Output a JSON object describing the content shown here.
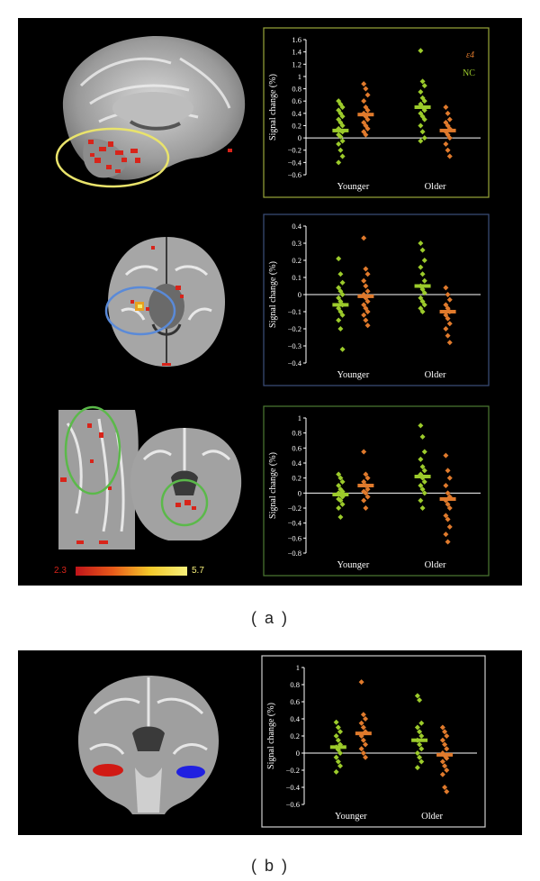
{
  "figure": {
    "caption_a": "( a )",
    "caption_b": "( b )",
    "colorbar": {
      "min_label": "2.3",
      "max_label": "5.7"
    }
  },
  "legend": {
    "e4": "ε4",
    "nc": "NC"
  },
  "colors": {
    "nc": "#9ccb2b",
    "e4": "#e07a2c",
    "box_a1": "#9aa63a",
    "box_a2": "#3c4f7c",
    "box_a3": "#4d7a33",
    "box_b": "#cfcfcf",
    "circle_yellow": "#e9e36b",
    "circle_blue": "#5a8ad8",
    "circle_green": "#5bb94a"
  },
  "chart_data": [
    {
      "type": "scatter",
      "ylabel": "Signal change (%)",
      "categories": [
        "Younger",
        "Older"
      ],
      "ylim": [
        -0.6,
        1.6
      ],
      "yticks": [
        -0.6,
        -0.4,
        -0.2,
        0,
        0.2,
        0.4,
        0.6,
        0.8,
        1,
        1.2,
        1.4,
        1.6
      ],
      "yticklabels": [
        "−0.6",
        "−0.4",
        "−0.2",
        "0",
        "0.2",
        "0.4",
        "0.6",
        "0.8",
        "1",
        "1.2",
        "1.4",
        "1.6"
      ],
      "legend_visible": true,
      "series": [
        {
          "name": "NC",
          "group": "Younger",
          "mean": 0.12,
          "values": [
            0.6,
            0.55,
            0.5,
            0.45,
            0.4,
            0.35,
            0.3,
            0.25,
            0.2,
            0.15,
            0.12,
            0.1,
            0.05,
            0.02,
            -0.05,
            -0.1,
            -0.2,
            -0.3,
            -0.4
          ]
        },
        {
          "name": "ε4",
          "group": "Younger",
          "mean": 0.38,
          "values": [
            0.88,
            0.8,
            0.7,
            0.6,
            0.5,
            0.45,
            0.4,
            0.35,
            0.3,
            0.25,
            0.2,
            0.15,
            0.1,
            0.05
          ]
        },
        {
          "name": "NC",
          "group": "Older",
          "mean": 0.5,
          "values": [
            1.42,
            0.92,
            0.85,
            0.75,
            0.65,
            0.6,
            0.55,
            0.5,
            0.45,
            0.4,
            0.35,
            0.3,
            0.2,
            0.1,
            0.0,
            -0.05
          ]
        },
        {
          "name": "ε4",
          "group": "Older",
          "mean": 0.12,
          "values": [
            0.5,
            0.4,
            0.3,
            0.25,
            0.2,
            0.15,
            0.1,
            0.05,
            0.0,
            -0.1,
            -0.2,
            -0.3
          ]
        }
      ]
    },
    {
      "type": "scatter",
      "ylabel": "Signal change (%)",
      "categories": [
        "Younger",
        "Older"
      ],
      "ylim": [
        -0.4,
        0.4
      ],
      "yticks": [
        -0.4,
        -0.3,
        -0.2,
        -0.1,
        0,
        0.1,
        0.2,
        0.3,
        0.4
      ],
      "yticklabels": [
        "−0.4",
        "−0.3",
        "−0.2",
        "−0.1",
        "0",
        "0.1",
        "0.2",
        "0.3",
        "0.4"
      ],
      "legend_visible": false,
      "series": [
        {
          "name": "NC",
          "group": "Younger",
          "mean": -0.06,
          "values": [
            0.21,
            0.12,
            0.07,
            0.04,
            0.02,
            0.0,
            -0.02,
            -0.04,
            -0.06,
            -0.08,
            -0.1,
            -0.12,
            -0.15,
            -0.2,
            -0.32
          ]
        },
        {
          "name": "ε4",
          "group": "Younger",
          "mean": -0.01,
          "values": [
            0.33,
            0.15,
            0.12,
            0.08,
            0.05,
            0.02,
            0.0,
            -0.02,
            -0.04,
            -0.06,
            -0.08,
            -0.1,
            -0.12,
            -0.15,
            -0.18
          ]
        },
        {
          "name": "NC",
          "group": "Older",
          "mean": 0.05,
          "values": [
            0.3,
            0.26,
            0.2,
            0.16,
            0.12,
            0.08,
            0.05,
            0.03,
            0.01,
            -0.02,
            -0.04,
            -0.06,
            -0.08,
            -0.1
          ]
        },
        {
          "name": "ε4",
          "group": "Older",
          "mean": -0.1,
          "values": [
            0.04,
            0.0,
            -0.03,
            -0.06,
            -0.08,
            -0.1,
            -0.12,
            -0.14,
            -0.17,
            -0.2,
            -0.24,
            -0.28
          ]
        }
      ]
    },
    {
      "type": "scatter",
      "ylabel": "Signal change (%)",
      "categories": [
        "Younger",
        "Older"
      ],
      "ylim": [
        -0.8,
        1
      ],
      "yticks": [
        -0.8,
        -0.6,
        -0.4,
        -0.2,
        0,
        0.2,
        0.4,
        0.6,
        0.8,
        1
      ],
      "yticklabels": [
        "−0.8",
        "−0.6",
        "−0.4",
        "−0.2",
        "0",
        "0.2",
        "0.4",
        "0.6",
        "0.8",
        "1"
      ],
      "legend_visible": false,
      "series": [
        {
          "name": "NC",
          "group": "Younger",
          "mean": -0.02,
          "values": [
            0.25,
            0.2,
            0.15,
            0.1,
            0.05,
            0.02,
            0.0,
            -0.02,
            -0.05,
            -0.08,
            -0.1,
            -0.15,
            -0.2,
            -0.32
          ]
        },
        {
          "name": "ε4",
          "group": "Younger",
          "mean": 0.1,
          "values": [
            0.55,
            0.25,
            0.2,
            0.15,
            0.1,
            0.05,
            0.02,
            0.0,
            -0.05,
            -0.1,
            -0.2
          ]
        },
        {
          "name": "NC",
          "group": "Older",
          "mean": 0.22,
          "values": [
            0.9,
            0.75,
            0.55,
            0.45,
            0.35,
            0.3,
            0.25,
            0.2,
            0.15,
            0.1,
            0.05,
            0.0,
            -0.1,
            -0.2
          ]
        },
        {
          "name": "ε4",
          "group": "Older",
          "mean": -0.08,
          "values": [
            0.5,
            0.3,
            0.2,
            0.1,
            0.0,
            -0.05,
            -0.1,
            -0.15,
            -0.2,
            -0.3,
            -0.35,
            -0.45,
            -0.55,
            -0.65
          ]
        }
      ]
    },
    {
      "type": "scatter",
      "ylabel": "Signal change (%)",
      "categories": [
        "Younger",
        "Older"
      ],
      "ylim": [
        -0.6,
        1
      ],
      "yticks": [
        -0.6,
        -0.4,
        -0.2,
        0,
        0.2,
        0.4,
        0.6,
        0.8,
        1
      ],
      "yticklabels": [
        "−0.6",
        "−0.4",
        "−0.2",
        "0",
        "0.2",
        "0.4",
        "0.6",
        "0.8",
        "1"
      ],
      "legend_visible": false,
      "series": [
        {
          "name": "NC",
          "group": "Younger",
          "mean": 0.07,
          "values": [
            0.36,
            0.3,
            0.25,
            0.2,
            0.15,
            0.1,
            0.07,
            0.04,
            0.0,
            -0.05,
            -0.1,
            -0.15,
            -0.22
          ]
        },
        {
          "name": "ε4",
          "group": "Younger",
          "mean": 0.23,
          "values": [
            0.83,
            0.45,
            0.4,
            0.35,
            0.3,
            0.25,
            0.2,
            0.15,
            0.1,
            0.05,
            0.0,
            -0.05
          ]
        },
        {
          "name": "NC",
          "group": "Older",
          "mean": 0.15,
          "values": [
            0.67,
            0.62,
            0.35,
            0.3,
            0.25,
            0.2,
            0.15,
            0.1,
            0.05,
            0.0,
            -0.05,
            -0.1,
            -0.17
          ]
        },
        {
          "name": "ε4",
          "group": "Older",
          "mean": -0.02,
          "values": [
            0.3,
            0.25,
            0.2,
            0.15,
            0.1,
            0.05,
            0.0,
            -0.03,
            -0.06,
            -0.1,
            -0.15,
            -0.2,
            -0.25,
            -0.4,
            -0.45
          ]
        }
      ]
    }
  ]
}
